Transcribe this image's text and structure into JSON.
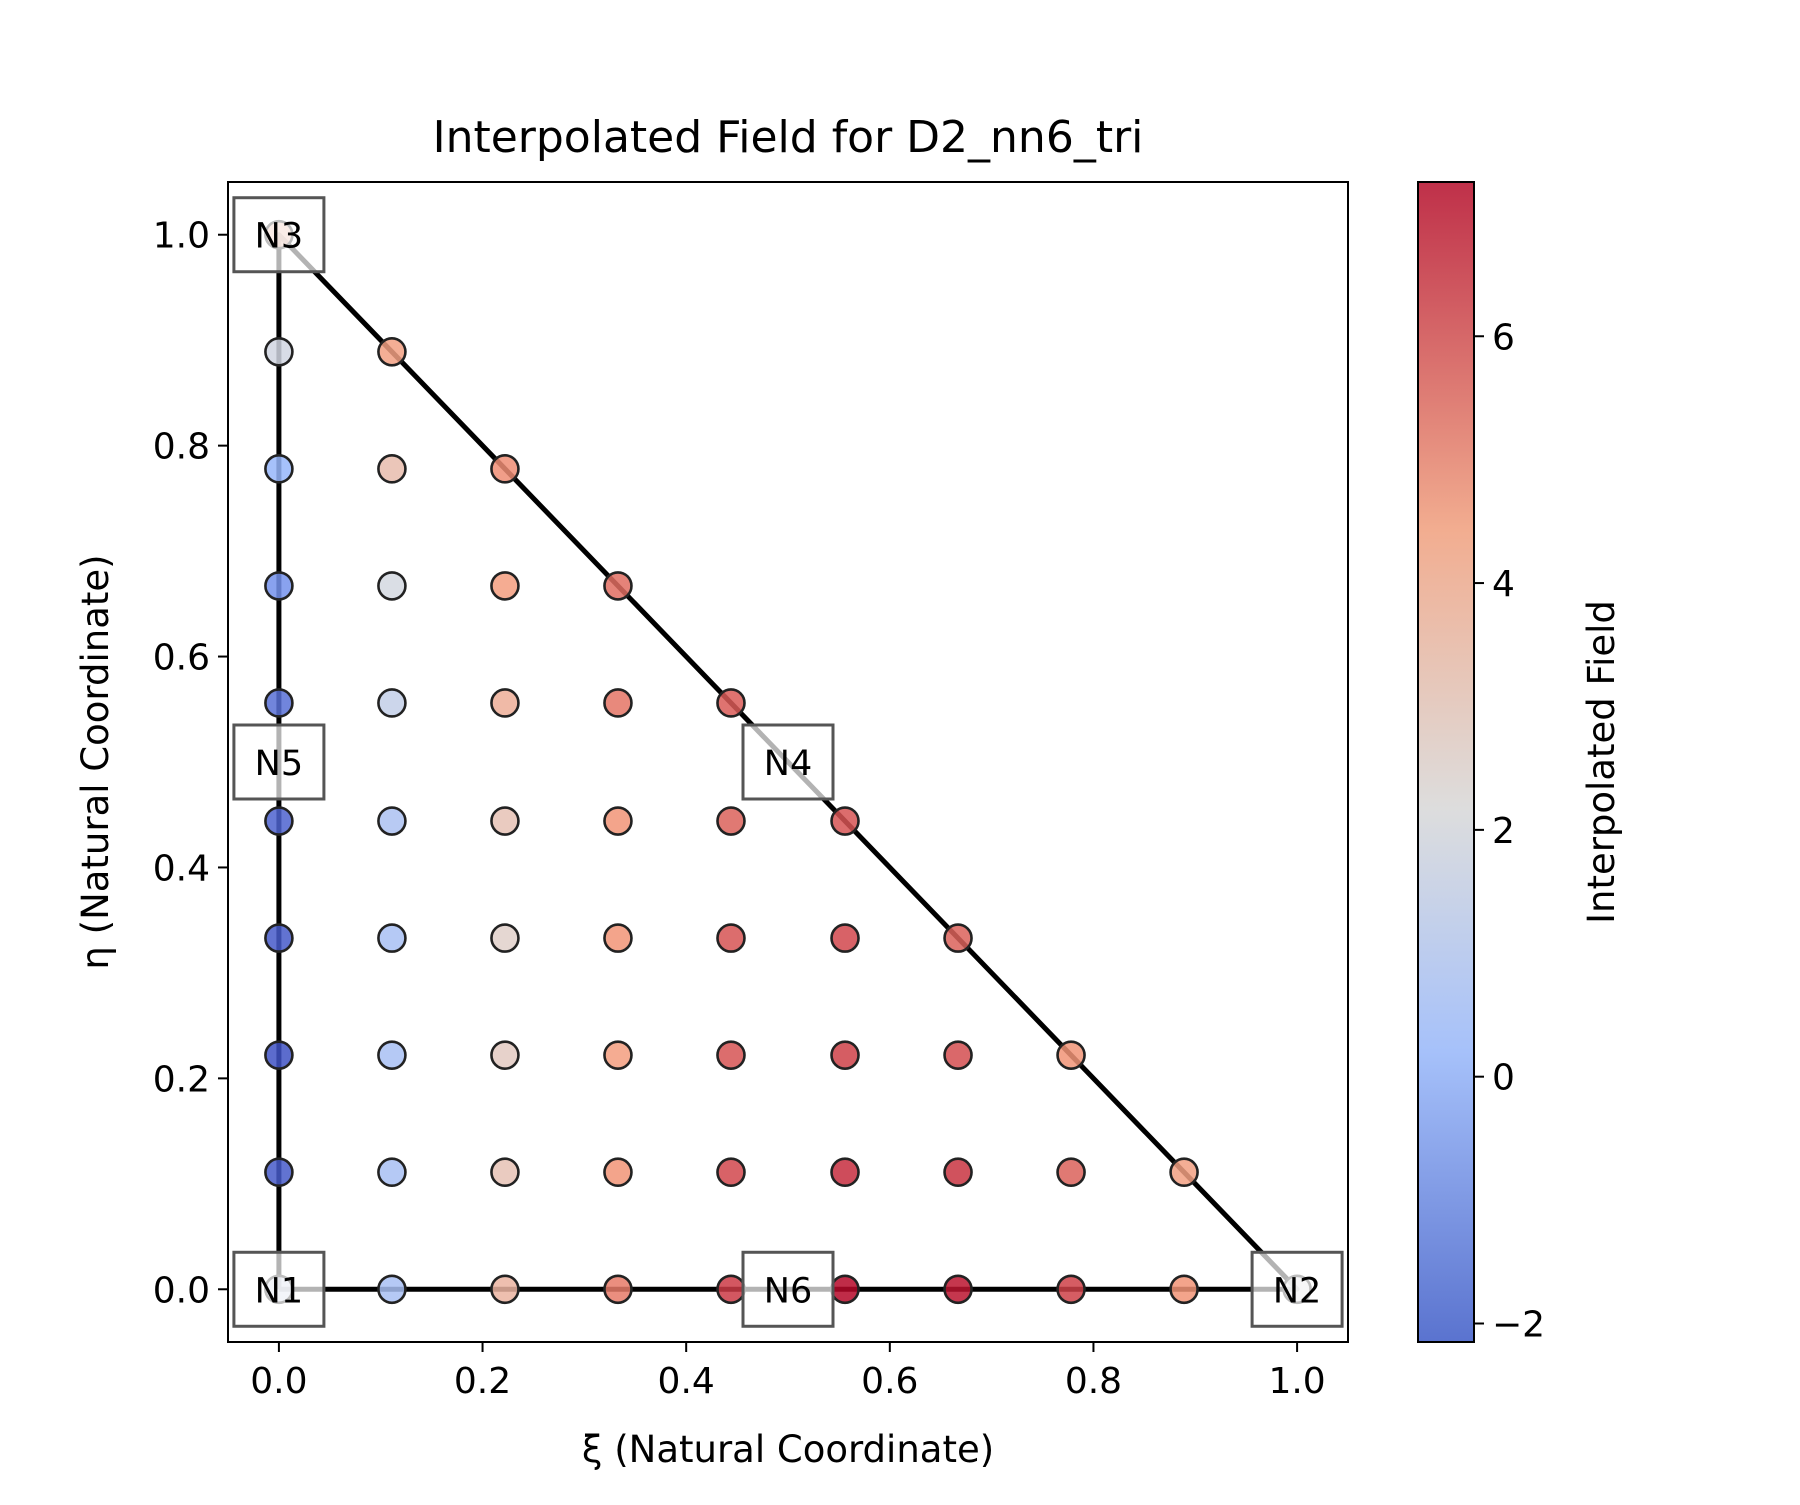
{
  "chart_data": {
    "type": "scatter",
    "title": "Interpolated Field for D2_nn6_tri",
    "xlabel": "ξ (Natural Coordinate)",
    "ylabel": "η (Natural Coordinate)",
    "xlim": [
      -0.05,
      1.05
    ],
    "ylim": [
      -0.05,
      1.05
    ],
    "xticks": [
      0.0,
      0.2,
      0.4,
      0.6,
      0.8,
      1.0
    ],
    "xtick_labels": [
      "0.0",
      "0.2",
      "0.4",
      "0.6",
      "0.8",
      "1.0"
    ],
    "yticks": [
      0.0,
      0.2,
      0.4,
      0.6,
      0.8,
      1.0
    ],
    "ytick_labels": [
      "0.0",
      "0.2",
      "0.4",
      "0.6",
      "0.8",
      "1.0"
    ],
    "colormap": "coolwarm",
    "colorbar": {
      "label": "Interpolated Field",
      "range": [
        -2.15,
        7.25
      ],
      "ticks": [
        -2,
        0,
        2,
        4,
        6
      ],
      "tick_labels": [
        "−2",
        "0",
        "2",
        "4",
        "6"
      ]
    },
    "element_edges": [
      [
        0,
        0
      ],
      [
        1,
        0
      ],
      [
        0,
        1
      ],
      [
        0,
        0
      ]
    ],
    "nodes": [
      {
        "label": "N1",
        "x": 0.0,
        "y": 0.0
      },
      {
        "label": "N2",
        "x": 1.0,
        "y": 0.0
      },
      {
        "label": "N3",
        "x": 0.0,
        "y": 1.0
      },
      {
        "label": "N4",
        "x": 0.5,
        "y": 0.5
      },
      {
        "label": "N5",
        "x": 0.0,
        "y": 0.5
      },
      {
        "label": "N6",
        "x": 0.5,
        "y": 0.0
      }
    ],
    "points": [
      {
        "x": 0.0,
        "y": 0.0,
        "v": 2.0
      },
      {
        "x": 0.111,
        "y": 0.0,
        "v": 1.0
      },
      {
        "x": 0.222,
        "y": 0.0,
        "v": 4.0
      },
      {
        "x": 0.333,
        "y": 0.0,
        "v": 5.4
      },
      {
        "x": 0.444,
        "y": 0.0,
        "v": 6.4
      },
      {
        "x": 0.556,
        "y": 0.0,
        "v": 7.2
      },
      {
        "x": 0.667,
        "y": 0.0,
        "v": 7.0
      },
      {
        "x": 0.778,
        "y": 0.0,
        "v": 6.3
      },
      {
        "x": 0.889,
        "y": 0.0,
        "v": 5.0
      },
      {
        "x": 1.0,
        "y": 0.0,
        "v": 2.5
      },
      {
        "x": 0.0,
        "y": 0.111,
        "v": -1.8
      },
      {
        "x": 0.111,
        "y": 0.111,
        "v": 1.0
      },
      {
        "x": 0.222,
        "y": 0.111,
        "v": 3.5
      },
      {
        "x": 0.333,
        "y": 0.111,
        "v": 5.0
      },
      {
        "x": 0.444,
        "y": 0.111,
        "v": 6.2
      },
      {
        "x": 0.556,
        "y": 0.111,
        "v": 6.6
      },
      {
        "x": 0.667,
        "y": 0.111,
        "v": 6.5
      },
      {
        "x": 0.778,
        "y": 0.111,
        "v": 5.8
      },
      {
        "x": 0.889,
        "y": 0.111,
        "v": 4.7
      },
      {
        "x": 0.0,
        "y": 0.222,
        "v": -2.0
      },
      {
        "x": 0.111,
        "y": 0.222,
        "v": 1.0
      },
      {
        "x": 0.222,
        "y": 0.222,
        "v": 3.2
      },
      {
        "x": 0.333,
        "y": 0.222,
        "v": 4.8
      },
      {
        "x": 0.444,
        "y": 0.222,
        "v": 6.0
      },
      {
        "x": 0.556,
        "y": 0.222,
        "v": 6.3
      },
      {
        "x": 0.667,
        "y": 0.222,
        "v": 6.1
      },
      {
        "x": 0.778,
        "y": 0.222,
        "v": 5.0
      },
      {
        "x": 0.0,
        "y": 0.333,
        "v": -1.8
      },
      {
        "x": 0.111,
        "y": 0.333,
        "v": 1.0
      },
      {
        "x": 0.222,
        "y": 0.333,
        "v": 3.0
      },
      {
        "x": 0.333,
        "y": 0.333,
        "v": 5.0
      },
      {
        "x": 0.444,
        "y": 0.333,
        "v": 6.0
      },
      {
        "x": 0.556,
        "y": 0.333,
        "v": 6.2
      },
      {
        "x": 0.667,
        "y": 0.333,
        "v": 5.8
      },
      {
        "x": 0.0,
        "y": 0.444,
        "v": -1.6
      },
      {
        "x": 0.111,
        "y": 0.444,
        "v": 1.1
      },
      {
        "x": 0.222,
        "y": 0.444,
        "v": 3.5
      },
      {
        "x": 0.333,
        "y": 0.444,
        "v": 5.0
      },
      {
        "x": 0.444,
        "y": 0.444,
        "v": 5.8
      },
      {
        "x": 0.556,
        "y": 0.444,
        "v": 6.0
      },
      {
        "x": 0.0,
        "y": 0.556,
        "v": -1.3
      },
      {
        "x": 0.111,
        "y": 0.556,
        "v": 1.8
      },
      {
        "x": 0.222,
        "y": 0.556,
        "v": 4.2
      },
      {
        "x": 0.333,
        "y": 0.556,
        "v": 5.5
      },
      {
        "x": 0.444,
        "y": 0.556,
        "v": 5.9
      },
      {
        "x": 0.0,
        "y": 0.667,
        "v": -0.5
      },
      {
        "x": 0.111,
        "y": 0.667,
        "v": 2.3
      },
      {
        "x": 0.222,
        "y": 0.667,
        "v": 4.8
      },
      {
        "x": 0.333,
        "y": 0.667,
        "v": 5.6
      },
      {
        "x": 0.0,
        "y": 0.778,
        "v": 0.5
      },
      {
        "x": 0.111,
        "y": 0.778,
        "v": 3.7
      },
      {
        "x": 0.222,
        "y": 0.778,
        "v": 5.1
      },
      {
        "x": 0.0,
        "y": 0.889,
        "v": 2.2
      },
      {
        "x": 0.111,
        "y": 0.889,
        "v": 4.7
      },
      {
        "x": 0.0,
        "y": 1.0,
        "v": 4.0
      }
    ]
  }
}
